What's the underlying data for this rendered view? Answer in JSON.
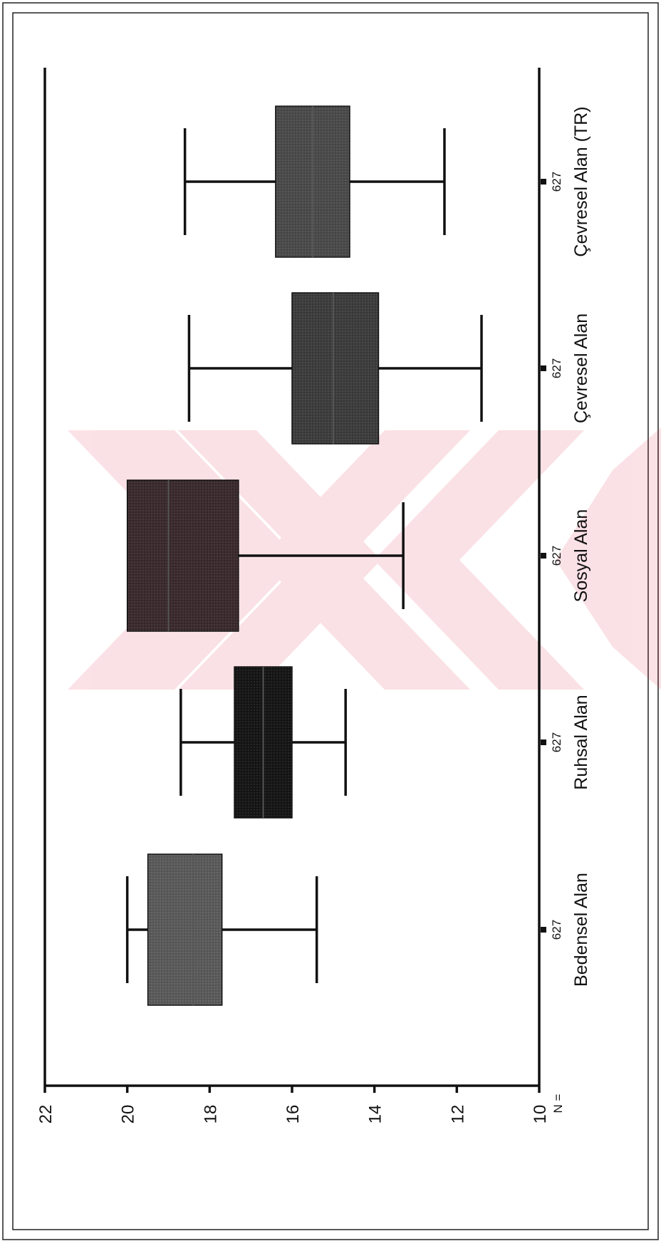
{
  "chart_data": {
    "type": "boxplot",
    "orientation": "rotated-90-ccw",
    "ylim": [
      10,
      22
    ],
    "yticks": [
      10,
      12,
      14,
      16,
      18,
      20,
      22
    ],
    "n_label": "N =",
    "categories": [
      "Bedensel Alan",
      "Ruhsal Alan",
      "Sosyal Alan",
      "Çevresel Alan",
      "Çevresel Alan (TR)"
    ],
    "n_values": [
      "627",
      "627",
      "627",
      "627",
      "627"
    ],
    "boxes": [
      {
        "whisker_low": 15.4,
        "q1": 17.7,
        "median": 18.4,
        "q3": 19.5,
        "whisker_high": 20.0,
        "color": "#5a5a5a"
      },
      {
        "whisker_low": 14.7,
        "q1": 16.0,
        "median": 16.7,
        "q3": 17.4,
        "whisker_high": 18.7,
        "color": "#151515"
      },
      {
        "whisker_low": 13.3,
        "q1": 17.3,
        "median": 19.0,
        "q3": 20.0,
        "whisker_high": 20.0,
        "color": "#3a2a2e"
      },
      {
        "whisker_low": 11.4,
        "q1": 13.9,
        "median": 15.0,
        "q3": 16.0,
        "whisker_high": 18.5,
        "color": "#3c3c3c"
      },
      {
        "whisker_low": 12.3,
        "q1": 14.6,
        "median": 15.5,
        "q3": 16.4,
        "whisker_high": 18.6,
        "color": "#4a4a4a"
      }
    ]
  }
}
